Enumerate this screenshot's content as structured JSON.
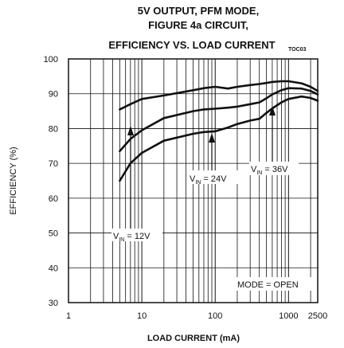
{
  "chart_data": {
    "type": "line",
    "title_lines": [
      "5V OUTPUT, PFM MODE,",
      "FIGURE 4a CIRCUIT,",
      "EFFICIENCY VS. LOAD CURRENT"
    ],
    "title_suffix": "TOC03",
    "xlabel": "LOAD CURRENT (mA)",
    "ylabel": "EFFICIENCY (%)",
    "x_scale": "log",
    "xlim": [
      1,
      2500
    ],
    "ylim": [
      30,
      100
    ],
    "x_ticks": [
      1,
      10,
      100,
      1000,
      2500
    ],
    "x_tick_labels": [
      "1",
      "10",
      "100",
      "1000",
      "2500"
    ],
    "y_ticks": [
      30,
      40,
      50,
      60,
      70,
      80,
      90,
      100
    ],
    "y_tick_labels": [
      "30",
      "40",
      "50",
      "60",
      "70",
      "80",
      "90",
      "100"
    ],
    "grid": true,
    "series": [
      {
        "name": "VIN = 12V",
        "x": [
          5,
          7,
          10,
          20,
          50,
          70,
          100,
          150,
          200,
          300,
          400,
          500,
          600,
          800,
          1000,
          1500,
          2000,
          2500
        ],
        "y": [
          85.5,
          87,
          88.5,
          89.5,
          91,
          91.6,
          92,
          91.5,
          92,
          92.5,
          92.8,
          93.1,
          93.4,
          93.6,
          93.6,
          93,
          92,
          90.8
        ]
      },
      {
        "name": "VIN = 24V",
        "x": [
          5,
          7,
          10,
          20,
          50,
          70,
          100,
          150,
          200,
          300,
          400,
          500,
          600,
          800,
          1000,
          1500,
          2000,
          2500
        ],
        "y": [
          73.5,
          77,
          79.5,
          83,
          85,
          85.5,
          85.7,
          86,
          86.3,
          87,
          87.5,
          88.7,
          89.8,
          91,
          91.6,
          91.5,
          90.8,
          89.8
        ]
      },
      {
        "name": "VIN = 36V",
        "x": [
          5,
          7,
          10,
          20,
          50,
          70,
          100,
          150,
          200,
          300,
          400,
          500,
          600,
          800,
          1000,
          1500,
          2000,
          2500
        ],
        "y": [
          65,
          70,
          73,
          76.5,
          78.5,
          79,
          79.2,
          80.3,
          81.3,
          82.3,
          82.8,
          84.5,
          85.8,
          87.5,
          88.5,
          89.2,
          88.8,
          88
        ]
      }
    ],
    "annotations": [
      {
        "main": "V",
        "sub": "IN",
        "rest": " = 12V"
      },
      {
        "main": "V",
        "sub": "IN",
        "rest": " = 24V"
      },
      {
        "main": "V",
        "sub": "IN",
        "rest": " = 36V"
      },
      {
        "main": "MODE = OPEN",
        "sub": "",
        "rest": ""
      }
    ],
    "line_color": "#111111",
    "grid_color": "#111111",
    "background": "#ffffff"
  }
}
